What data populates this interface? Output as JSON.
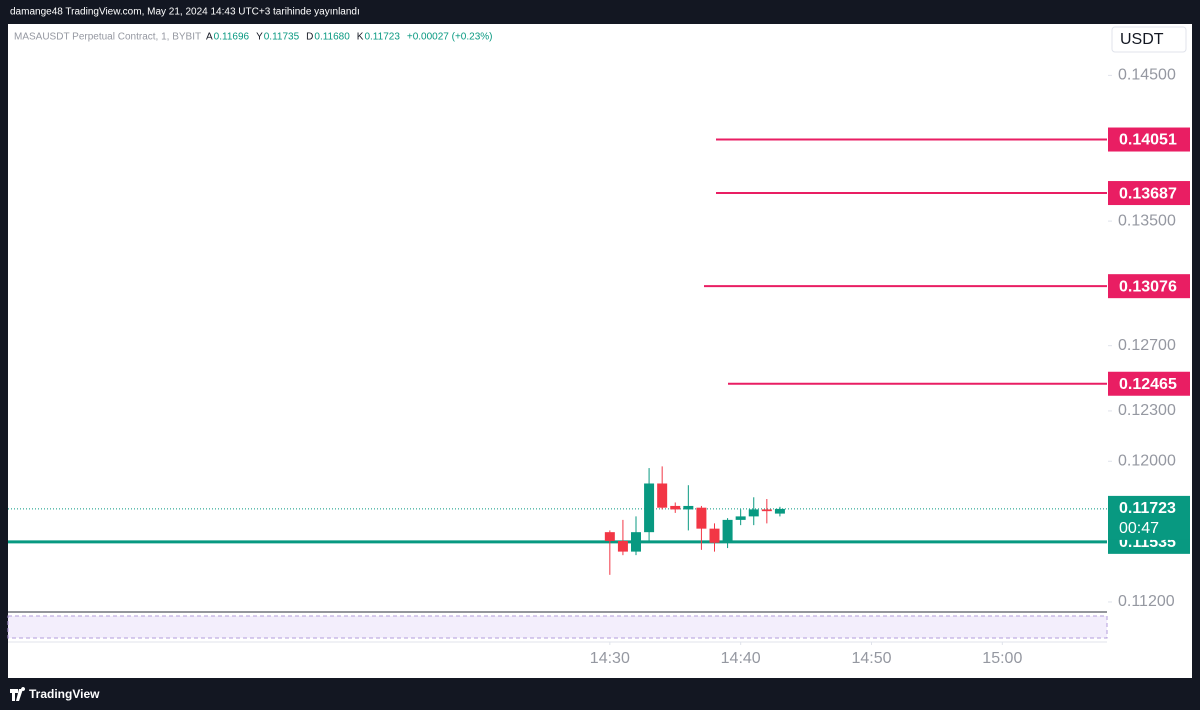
{
  "header": {
    "text": "damange48 TradingView.com, May 21, 2024 14:43 UTC+3 tarihinde yayınlandı"
  },
  "footer": {
    "brand": "TradingView"
  },
  "chart_data": {
    "type": "candlestick",
    "symbol": "MASAUSDT Perpetual Contract, 1, BYBIT",
    "ohlc_legend": [
      {
        "key": "A",
        "value": "0.11696"
      },
      {
        "key": "Y",
        "value": "0.11735"
      },
      {
        "key": "D",
        "value": "0.11680"
      },
      {
        "key": "K",
        "value": "0.11723"
      }
    ],
    "change": "+0.00027 (+0.23%)",
    "currency": "USDT",
    "x": [
      "14:30",
      "14:31",
      "14:32",
      "14:33",
      "14:34",
      "14:35",
      "14:36",
      "14:37",
      "14:38",
      "14:39",
      "14:40",
      "14:41",
      "14:42",
      "14:43"
    ],
    "open": [
      0.1159,
      0.1154,
      0.1148,
      0.1159,
      0.1187,
      0.1174,
      0.1172,
      0.1173,
      0.1161,
      0.1153,
      0.1166,
      0.1168,
      0.1172,
      0.11696
    ],
    "high": [
      0.116,
      0.1166,
      0.1168,
      0.1196,
      0.1197,
      0.1176,
      0.1186,
      0.1174,
      0.1164,
      0.1167,
      0.1172,
      0.1179,
      0.1178,
      0.11735
    ],
    "low": [
      0.1135,
      0.1146,
      0.1146,
      0.1153,
      0.1172,
      0.117,
      0.116,
      0.1149,
      0.1148,
      0.115,
      0.1163,
      0.1163,
      0.1164,
      0.1168
    ],
    "close": [
      0.1154,
      0.1148,
      0.1159,
      0.1187,
      0.1173,
      0.1172,
      0.1174,
      0.1161,
      0.1153,
      0.1166,
      0.1168,
      0.1172,
      0.1171,
      0.11723
    ],
    "up_color": "#089981",
    "down_color": "#f23645",
    "xlim": [
      "13:44",
      "15:08"
    ],
    "xticks": [
      "14:30",
      "14:40",
      "14:50",
      "15:00"
    ],
    "ylim": [
      0.11145,
      0.1487
    ],
    "log_scale": true,
    "yticks": [
      {
        "value": 0.112,
        "label": "0.11200"
      },
      {
        "value": 0.12,
        "label": "0.12000"
      },
      {
        "value": 0.123,
        "label": "0.12300"
      },
      {
        "value": 0.127,
        "label": "0.12700"
      },
      {
        "value": 0.135,
        "label": "0.13500"
      },
      {
        "value": 0.145,
        "label": "0.14500"
      }
    ],
    "levels": [
      {
        "value": 0.14051,
        "color": "#e91e63"
      },
      {
        "value": 0.13687,
        "color": "#e91e63"
      },
      {
        "value": 0.13076,
        "color": "#e91e63"
      },
      {
        "value": 0.12465,
        "color": "#e91e63"
      },
      {
        "value": 0.11535,
        "color": "#089981"
      }
    ],
    "last_price": {
      "value": 0.11723,
      "countdown": "00:47",
      "color": "#089981"
    }
  }
}
